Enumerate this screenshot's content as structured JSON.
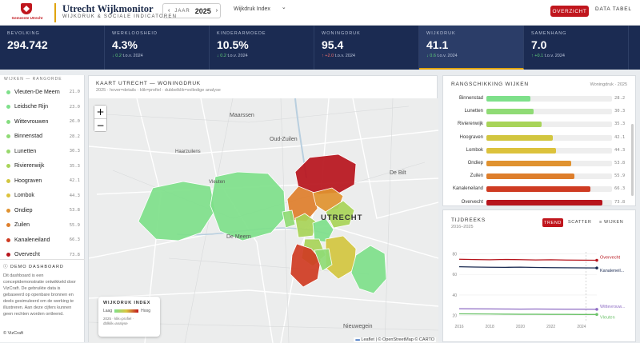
{
  "header": {
    "logo_text": "Gemeente Utrecht",
    "title": "Utrecht Wijkmonitor",
    "subtitle": "WIJKDRUK & SOCIALE INDICATOREN",
    "year_label": "JAAR",
    "year_value": "2025",
    "prev_glyph": "‹",
    "next_glyph": "›",
    "index_select": "Wijkdruk Index",
    "select_chevron": "⌄",
    "overzicht_label": "OVERZICHT",
    "data_tabel_label": "DATA TABEL"
  },
  "kpis": [
    {
      "label": "BEVOLKING",
      "value": "294.742",
      "delta": "",
      "dir": ""
    },
    {
      "label": "WERKLOOSHEID",
      "value": "4.3%",
      "delta": "0.2",
      "suffix": "t.o.v. 2024",
      "dir": "down"
    },
    {
      "label": "KINDERARMOEDE",
      "value": "10.5%",
      "delta": "0.2",
      "suffix": "t.o.v. 2024",
      "dir": "down"
    },
    {
      "label": "WONINGDRUK",
      "value": "95.4",
      "delta": "+2.0",
      "suffix": "t.o.v. 2024",
      "dir": "up-bad"
    },
    {
      "label": "WIJKDRUK",
      "value": "41.1",
      "delta": "0.6",
      "suffix": "t.o.v. 2024",
      "dir": "down"
    },
    {
      "label": "SAMENHANG",
      "value": "7.0",
      "delta": "+0.1",
      "suffix": "t.o.v. 2024",
      "dir": "up"
    }
  ],
  "districts": {
    "heading": "WIJKEN — RANGORDE",
    "items": [
      {
        "name": "Vleuten-De Meern",
        "value": "21.0",
        "color": "#7ee08a"
      },
      {
        "name": "Leidsche Rijn",
        "value": "23.0",
        "color": "#7ee08a"
      },
      {
        "name": "Wittevrouwen",
        "value": "26.0",
        "color": "#85dd7f"
      },
      {
        "name": "Binnenstad",
        "value": "28.2",
        "color": "#8fdb75"
      },
      {
        "name": "Lunetten",
        "value": "30.3",
        "color": "#98d86c"
      },
      {
        "name": "Rivierenwijk",
        "value": "35.3",
        "color": "#a8d458"
      },
      {
        "name": "Hoograven",
        "value": "42.1",
        "color": "#d2c63f"
      },
      {
        "name": "Lombok",
        "value": "44.3",
        "color": "#dcc23c"
      },
      {
        "name": "Ondiep",
        "value": "53.8",
        "color": "#e0922f"
      },
      {
        "name": "Zuilen",
        "value": "55.9",
        "color": "#de7e2b"
      },
      {
        "name": "Kanaleneiland",
        "value": "66.3",
        "color": "#cf3b22"
      },
      {
        "name": "Overvecht",
        "value": "73.8",
        "color": "#b7141c"
      }
    ]
  },
  "demo": {
    "title": "DEMO DASHBOARD",
    "text": "Dit dashboard is een conceptdemonstratie ontwikkeld door VizCraft. De gebruikte data is gebaseerd op openbare bronnen en deels gesimuleerd om de werking te illustreren. Aan deze cijfers kunnen geen rechten worden ontleend.",
    "copyright": "© VizCraft"
  },
  "map": {
    "title": "KAART UTRECHT — WONINGDRUK",
    "subtitle": "2025 · hover=details · klik=profiel · dubbelklik=volledige analyse",
    "zoom_in": "+",
    "zoom_out": "−",
    "places": {
      "maarssen": "Maarssen",
      "oud_zuilen": "Oud-Zuilen",
      "utrecht": "UTRECHT",
      "de_bilt": "De Bilt",
      "de_meern": "De Meern",
      "nieuwegein": "Nieuwegein",
      "haarzuilens": "Haarzuilens",
      "vleuten": "Vleuten"
    },
    "legend_title": "WIJKDRUK INDEX",
    "legend_low": "Laag",
    "legend_high": "Hoog",
    "legend_note": "2025 · klik=profiel · dblklik=analyse",
    "attribution": "Leaflet | © OpenStreetMap © CARTO",
    "flag_glyph": "▬"
  },
  "ranking": {
    "title": "RANGSCHIKKING WIJKEN",
    "meta": "Woningdruk · 2025",
    "max": 80,
    "items": [
      {
        "name": "Binnenstad",
        "value": 28.2,
        "label": "28.2",
        "color": "#7ee08a"
      },
      {
        "name": "Lunetten",
        "value": 30.3,
        "label": "30.3",
        "color": "#8fdb75"
      },
      {
        "name": "Rivierenwijk",
        "value": 35.3,
        "label": "35.3",
        "color": "#a8d458"
      },
      {
        "name": "Hoograven",
        "value": 42.1,
        "label": "42.1",
        "color": "#d2c63f"
      },
      {
        "name": "Lombok",
        "value": 44.3,
        "label": "44.3",
        "color": "#dcc23c"
      },
      {
        "name": "Ondiep",
        "value": 53.8,
        "label": "53.8",
        "color": "#e0922f"
      },
      {
        "name": "Zuilen",
        "value": 55.9,
        "label": "55.9",
        "color": "#de7e2b"
      },
      {
        "name": "Kanaleneiland",
        "value": 66.3,
        "label": "66.3",
        "color": "#cf3b22"
      },
      {
        "name": "Overvecht",
        "value": 73.8,
        "label": "73.8",
        "color": "#b7141c"
      }
    ]
  },
  "timeseries": {
    "title": "TIJDREEKS",
    "range": "2016–2025",
    "trend_label": "TREND",
    "scatter_label": "SCATTER",
    "wijken_label": "WIJKEN",
    "filter_glyph": "≡"
  },
  "chart_data": {
    "type": "line",
    "x": [
      2016,
      2017,
      2018,
      2019,
      2020,
      2021,
      2022,
      2023,
      2024,
      2025
    ],
    "xticks": [
      "2016",
      "2018",
      "2020",
      "2022",
      "2024"
    ],
    "yticks": [
      "20",
      "40",
      "60",
      "80"
    ],
    "ylim": [
      15,
      82
    ],
    "series": [
      {
        "name": "Overvecht",
        "color": "#b7141c",
        "values": [
          74.8,
          74.5,
          74.3,
          74.6,
          74.4,
          74.1,
          74.3,
          74.0,
          73.9,
          73.8
        ]
      },
      {
        "name": "Kanaleneil...",
        "color": "#1b2b52",
        "values": [
          67.5,
          67.2,
          67.0,
          66.9,
          67.1,
          66.8,
          66.6,
          66.5,
          66.4,
          66.3
        ]
      },
      {
        "name": "Wittevrouw...",
        "color": "#8e6cc4",
        "values": [
          26.6,
          26.5,
          26.4,
          26.3,
          26.2,
          26.3,
          26.2,
          26.1,
          26.1,
          26.0
        ]
      },
      {
        "name": "Vleuten",
        "color": "#6cc26a",
        "values": [
          21.6,
          21.5,
          21.4,
          21.3,
          21.2,
          21.2,
          21.1,
          21.1,
          21.0,
          21.0
        ]
      }
    ]
  }
}
